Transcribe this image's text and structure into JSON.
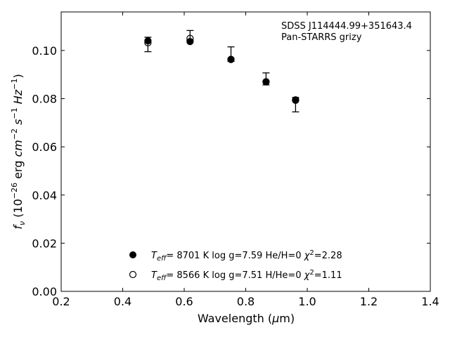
{
  "chart_data": {
    "type": "scatter",
    "annotation_lines": [
      "SDSS J114444.99+351643.4",
      "Pan-STARRS grizy"
    ],
    "xlabel": "Wavelength (μm)",
    "ylabel": "f_ν (10^-26 erg cm^-2 s^-1 Hz^-1)",
    "xlim": [
      0.2,
      1.4
    ],
    "ylim": [
      0.0,
      0.116
    ],
    "x_ticks": [
      0.2,
      0.4,
      0.6,
      0.8,
      1.0,
      1.2,
      1.4
    ],
    "x_tick_labels": [
      "0.2",
      "0.4",
      "0.6",
      "0.8",
      "1.0",
      "1.2",
      "1.4"
    ],
    "y_ticks": [
      0.0,
      0.02,
      0.04,
      0.06,
      0.08,
      0.1
    ],
    "y_tick_labels": [
      "0.00",
      "0.02",
      "0.04",
      "0.06",
      "0.08",
      "0.10"
    ],
    "grid": false,
    "legend_position": "lower-center",
    "observed": {
      "x": [
        0.482,
        0.619,
        0.752,
        0.866,
        0.962
      ],
      "y": [
        0.1025,
        0.1063,
        0.0985,
        0.0882,
        0.0775
      ],
      "err": [
        0.003,
        0.002,
        0.003,
        0.0025,
        0.003
      ]
    },
    "series": [
      {
        "name": "Teff= 8701 K log g=7.59 He/H=0 χ2=2.28",
        "legend": {
          "teff": "8701 K",
          "logg": "log g=7.59",
          "comp": "He/H=0",
          "chi": "=2.28"
        },
        "marker": "filled",
        "x": [
          0.482,
          0.619,
          0.752,
          0.866,
          0.962
        ],
        "y": [
          0.104,
          0.1037,
          0.0963,
          0.087,
          0.0795
        ]
      },
      {
        "name": "Teff= 8566 K log g=7.51 H/He=0 χ2=1.11",
        "legend": {
          "teff": "8566 K",
          "logg": "log g=7.51",
          "comp": "H/He=0",
          "chi": "=1.11"
        },
        "marker": "open",
        "x": [
          0.482,
          0.619,
          0.752,
          0.866,
          0.962
        ],
        "y": [
          0.1032,
          0.105,
          0.0963,
          0.087,
          0.0793
        ]
      }
    ],
    "colors": {
      "marker": "#000000",
      "axis": "#000000",
      "background": "#ffffff"
    }
  }
}
